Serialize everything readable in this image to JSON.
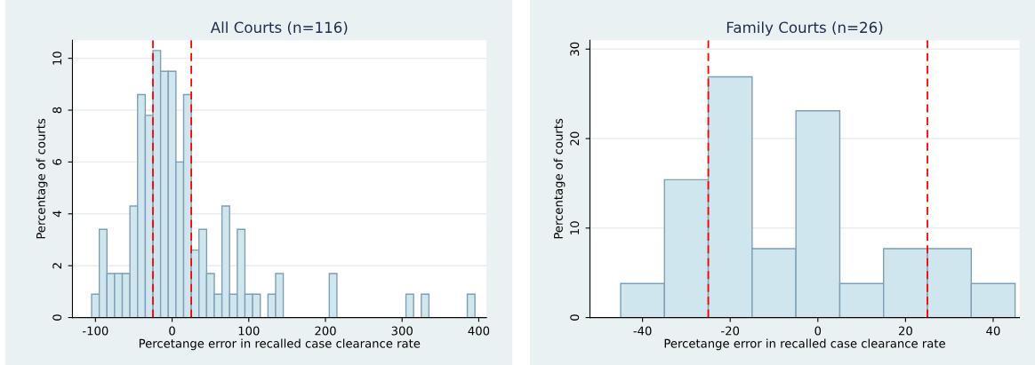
{
  "chart_data": [
    {
      "type": "histogram",
      "title": "All Courts (n=116)",
      "xlabel": "Percetange error in recalled case clearance rate",
      "ylabel": "Percentage of courts",
      "bins": [
        -105,
        -95,
        -85,
        -75,
        -65,
        -55,
        -45,
        -35,
        -25,
        -15,
        -5,
        5,
        15,
        25,
        35,
        45,
        55,
        65,
        75,
        85,
        95,
        105,
        115,
        125,
        135,
        145,
        155,
        165,
        175,
        185,
        195,
        205,
        215,
        225,
        235,
        245,
        255,
        265,
        275,
        285,
        295,
        305,
        315,
        325,
        335,
        345,
        355,
        365,
        375,
        385,
        395
      ],
      "values": [
        0.9,
        3.4,
        1.7,
        1.7,
        1.7,
        4.3,
        8.6,
        7.8,
        10.3,
        9.5,
        9.5,
        6.0,
        8.6,
        2.6,
        3.4,
        1.7,
        0.9,
        4.3,
        0.9,
        3.4,
        0.9,
        0.9,
        0,
        0.9,
        1.7,
        0,
        0,
        0,
        0,
        0,
        0,
        1.7,
        0,
        0,
        0,
        0,
        0,
        0,
        0,
        0,
        0,
        0.9,
        0,
        0.9,
        0,
        0,
        0,
        0,
        0,
        0.9
      ],
      "color": "#cfe6ee",
      "xlim": [
        -130,
        410
      ],
      "ylim": [
        0,
        10.7
      ],
      "xticks": [
        -100,
        0,
        100,
        200,
        300,
        400
      ],
      "yticks": [
        0,
        2,
        4,
        6,
        8,
        10
      ],
      "grid": "y",
      "ref_lines": [
        {
          "axis": "x",
          "value": -25,
          "color": "#ff0000",
          "line_style": "dashed"
        },
        {
          "axis": "x",
          "value": 25,
          "color": "#ff0000",
          "line_style": "dashed"
        }
      ]
    },
    {
      "type": "histogram",
      "title": "Family Courts (n=26)",
      "xlabel": "Percetange error in recalled case clearance rate",
      "ylabel": "Percentage of courts",
      "bins": [
        -45,
        -35,
        -25,
        -15,
        -5,
        5,
        15,
        25,
        35,
        45
      ],
      "values": [
        3.8,
        15.4,
        26.9,
        7.7,
        23.1,
        3.8,
        7.7,
        7.7,
        3.8
      ],
      "color": "#cfe6ee",
      "xlim": [
        -52,
        46
      ],
      "ylim": [
        0,
        31
      ],
      "xticks": [
        -40,
        -20,
        0,
        20,
        40
      ],
      "yticks": [
        0,
        10,
        20,
        30
      ],
      "grid": "y",
      "ref_lines": [
        {
          "axis": "x",
          "value": -25,
          "color": "#ff0000",
          "line_style": "dashed"
        },
        {
          "axis": "x",
          "value": 25,
          "color": "#ff0000",
          "line_style": "dashed"
        }
      ]
    }
  ]
}
